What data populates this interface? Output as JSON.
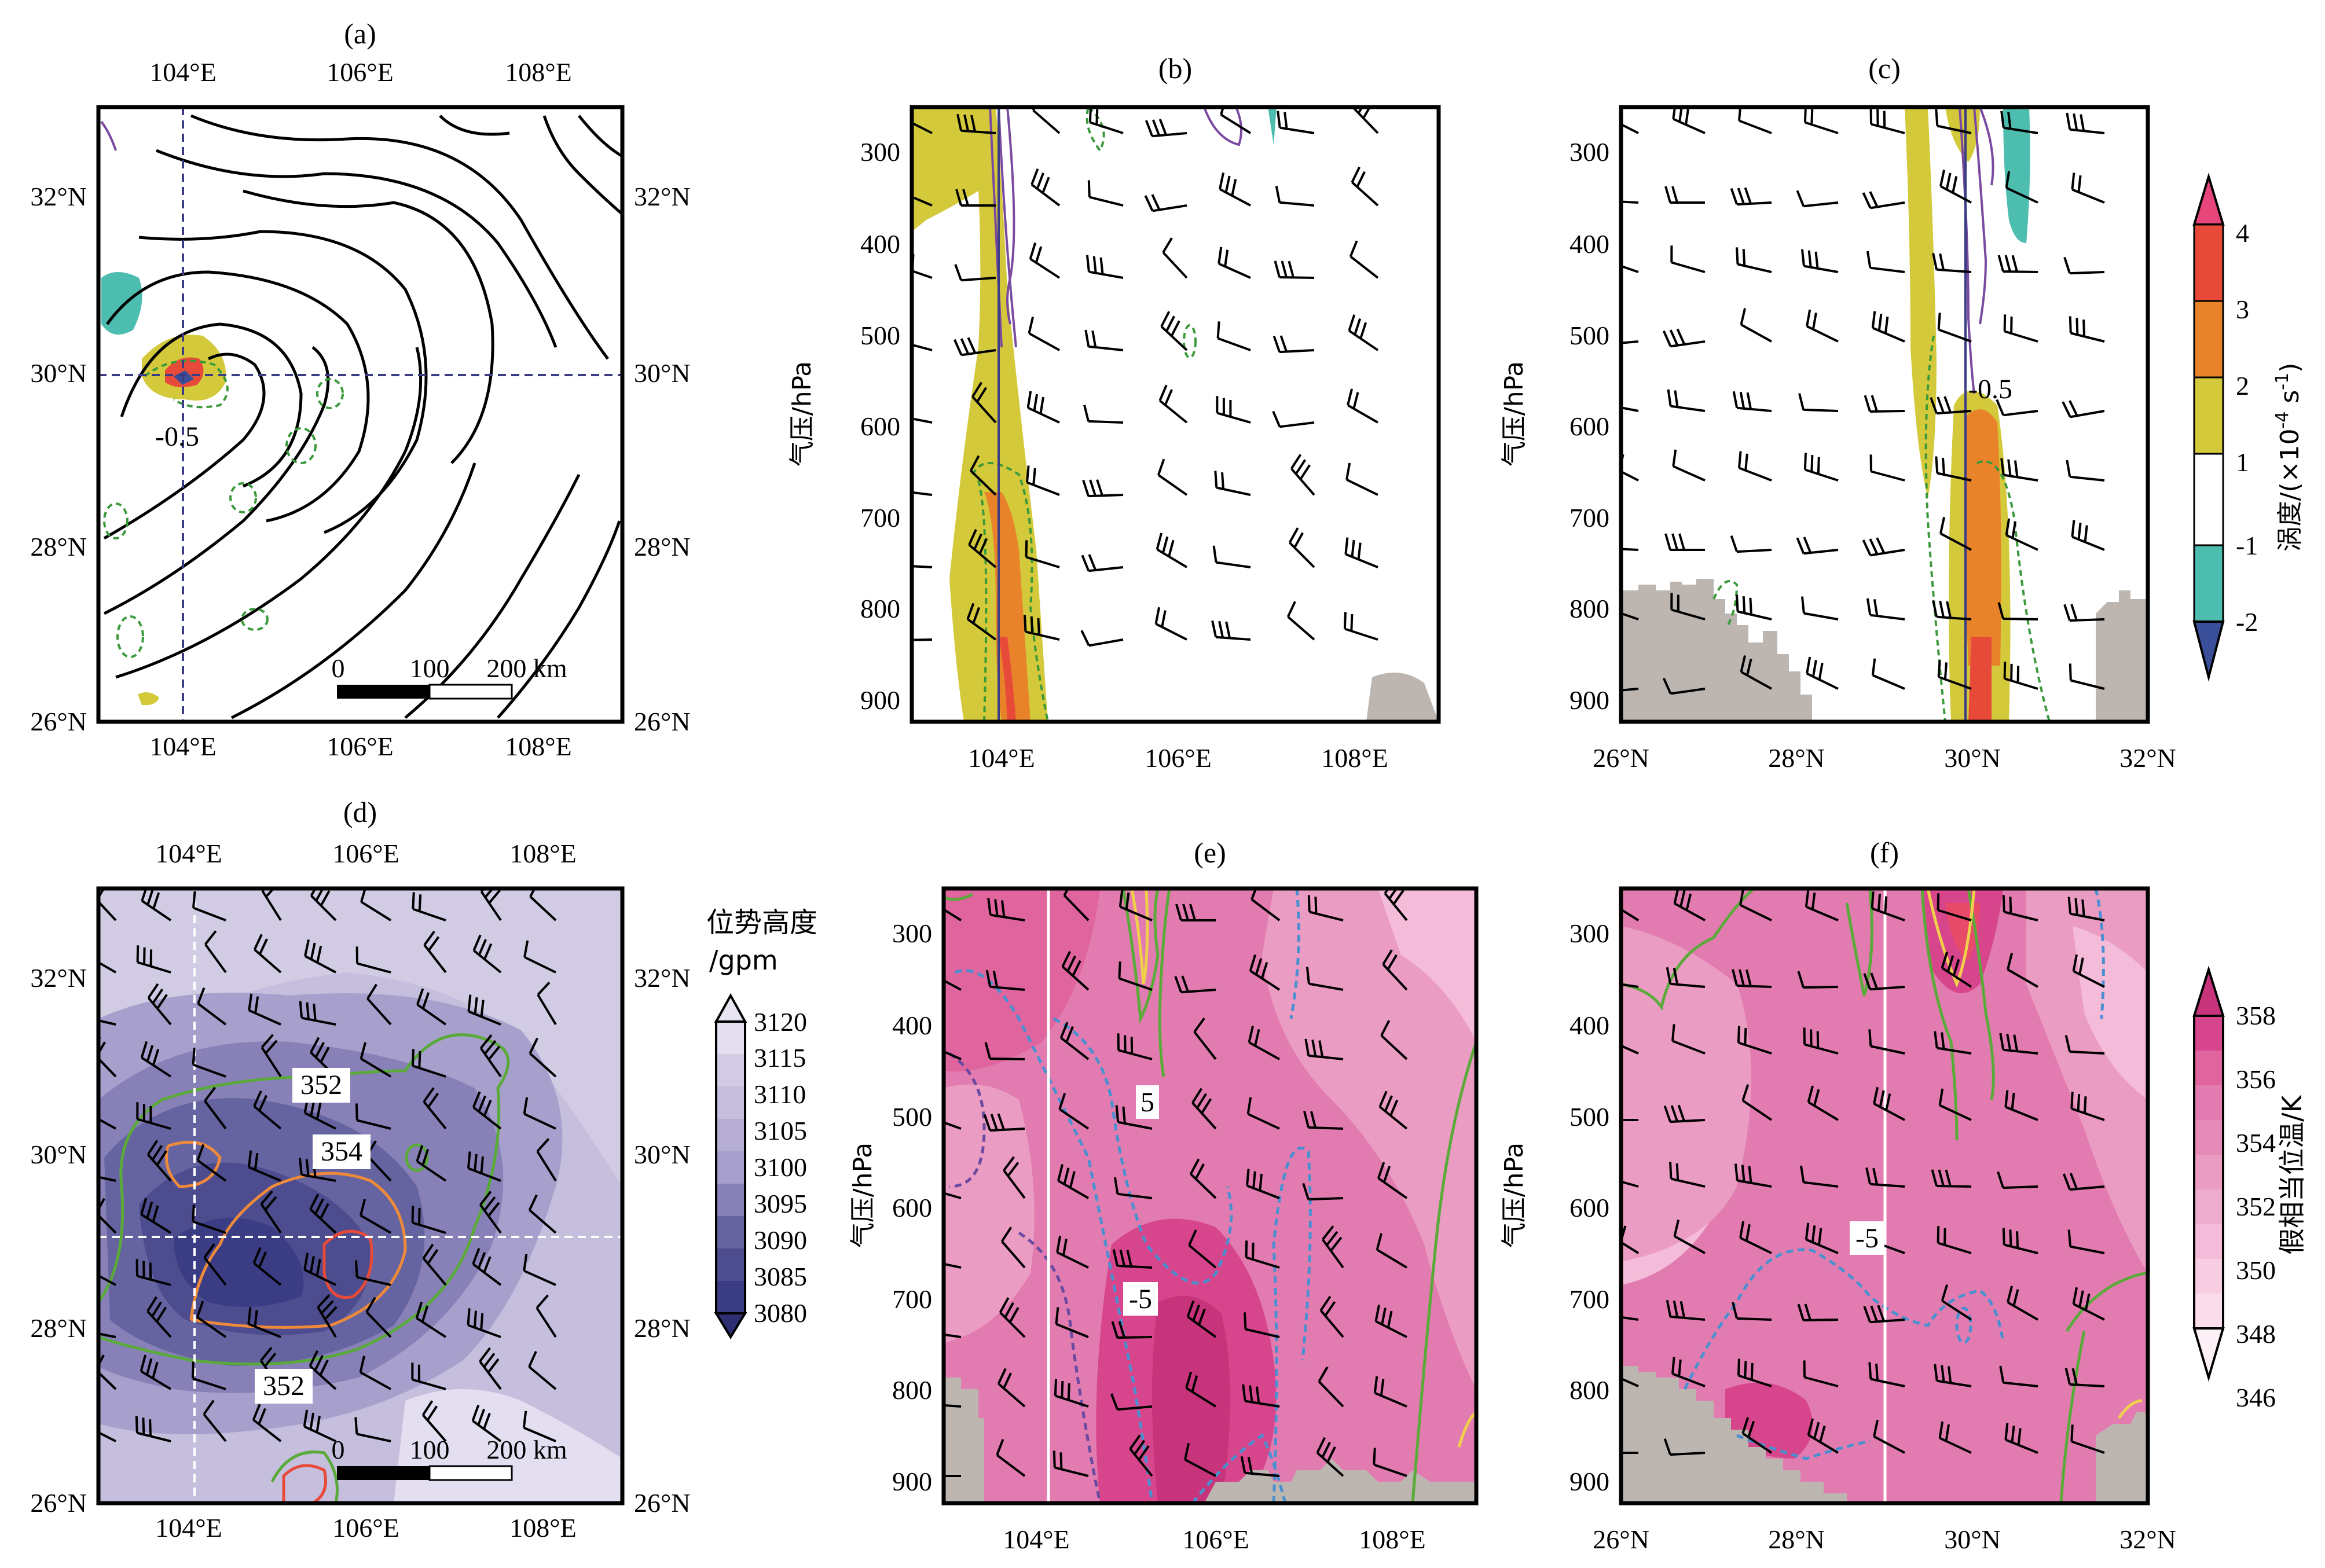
{
  "figure": {
    "panel_labels": [
      "(a)",
      "(b)",
      "(c)",
      "(d)",
      "(e)",
      "(f)"
    ],
    "colors": {
      "vort_pos_1_2": "#d4c93a",
      "vort_pos_2_3": "#e8832a",
      "vort_pos_3_4": "#e84a3a",
      "vort_pos_4": "#e8457a",
      "vort_neg_1_2": "#4dbdb0",
      "vort_neg_2": "#3a4f9a",
      "terrain": "#bcb5b0",
      "streamline": "#000000",
      "contour_neg": "#3a9a3a",
      "contour_purple": "#7a4aa0",
      "geo_dark": "#3b3d84",
      "theta_pink": "#e0649e",
      "green_line": "#5aaa3a",
      "orange_line": "#ee8a3a",
      "red_line": "#e84a3a",
      "yellow_line": "#f0d04a",
      "blue_dash": "#4a90d0",
      "purple_dash": "#6a4aa0"
    }
  },
  "panel_a": {
    "title": "(a)",
    "top_ticks": [
      "104°E",
      "106°E",
      "108°E"
    ],
    "bottom_ticks": [
      "104°E",
      "106°E",
      "108°E"
    ],
    "left_ticks": [
      "32°N",
      "30°N",
      "28°N",
      "26°N"
    ],
    "right_ticks": [
      "32°N",
      "30°N",
      "28°N",
      "26°N"
    ],
    "contour_label": "-0.5",
    "scale_bar": {
      "ticks": [
        "0",
        "100",
        "200 km"
      ]
    }
  },
  "panel_b": {
    "title": "(b)",
    "ylabel": "气压/hPa",
    "y_ticks": [
      "300",
      "400",
      "500",
      "600",
      "700",
      "800",
      "900"
    ],
    "x_ticks": [
      "104°E",
      "106°E",
      "108°E"
    ]
  },
  "panel_c": {
    "title": "(c)",
    "ylabel": "气压/hPa",
    "y_ticks": [
      "300",
      "400",
      "500",
      "600",
      "700",
      "800",
      "900"
    ],
    "x_ticks": [
      "26°N",
      "28°N",
      "30°N",
      "32°N"
    ],
    "contour_label": "-0.5"
  },
  "colorbar_top": {
    "label": "涡度/(×10",
    "label_sup": "-4",
    "label_tail": " s",
    "label_sup2": "-1",
    "label_close": ")",
    "ticks": [
      "4",
      "3",
      "2",
      "1",
      "-1",
      "-2"
    ]
  },
  "panel_d": {
    "title": "(d)",
    "top_ticks": [
      "104°E",
      "106°E",
      "108°E"
    ],
    "bottom_ticks": [
      "104°E",
      "106°E",
      "108°E"
    ],
    "left_ticks": [
      "32°N",
      "30°N",
      "28°N",
      "26°N"
    ],
    "right_ticks": [
      "32°N",
      "30°N",
      "28°N",
      "26°N"
    ],
    "contour_labels": [
      "352",
      "354",
      "352"
    ],
    "scale_bar": {
      "ticks": [
        "0",
        "100",
        "200 km"
      ]
    }
  },
  "colorbar_geo": {
    "label_line1": "位势高度",
    "label_line2": "/gpm",
    "ticks": [
      "3120",
      "3115",
      "3110",
      "3105",
      "3100",
      "3095",
      "3090",
      "3085",
      "3080"
    ]
  },
  "panel_e": {
    "title": "(e)",
    "ylabel": "气压/hPa",
    "y_ticks": [
      "300",
      "400",
      "500",
      "600",
      "700",
      "800",
      "900"
    ],
    "x_ticks": [
      "104°E",
      "106°E",
      "108°E"
    ],
    "contour_labels": [
      "5",
      "-5"
    ]
  },
  "panel_f": {
    "title": "(f)",
    "ylabel": "气压/hPa",
    "y_ticks": [
      "300",
      "400",
      "500",
      "600",
      "700",
      "800",
      "900"
    ],
    "x_ticks": [
      "26°N",
      "28°N",
      "30°N",
      "32°N"
    ],
    "contour_labels": [
      "-5"
    ]
  },
  "colorbar_theta": {
    "label": "假相当位温/K",
    "ticks": [
      "358",
      "356",
      "354",
      "352",
      "350",
      "348",
      "346"
    ]
  },
  "chart_data": [
    {
      "panel": "(a)",
      "type": "map",
      "xlim": [
        103,
        109
      ],
      "ylim": [
        26,
        33
      ],
      "x_ticks": [
        104,
        106,
        108
      ],
      "y_ticks": [
        26,
        28,
        30,
        32
      ],
      "cross_section_lines": {
        "lon": 104,
        "lat": 30
      },
      "vortex_center": [
        104,
        30
      ],
      "contour_label": -0.5
    },
    {
      "panel": "(b)",
      "type": "cross_section",
      "xlim": [
        103,
        109
      ],
      "ylim": [
        925,
        250
      ],
      "x_ticks": [
        104,
        106,
        108
      ],
      "y_ticks": [
        300,
        400,
        500,
        600,
        700,
        800,
        900
      ]
    },
    {
      "panel": "(c)",
      "type": "cross_section",
      "xlim": [
        26,
        32
      ],
      "ylim": [
        925,
        250
      ],
      "x_ticks": [
        26,
        28,
        30,
        32
      ],
      "y_ticks": [
        300,
        400,
        500,
        600,
        700,
        800,
        900
      ],
      "contour_label": -0.5
    },
    {
      "panel": "colorbar-vorticity",
      "type": "colorbar",
      "levels": [
        -2,
        -1,
        1,
        2,
        3,
        4
      ]
    },
    {
      "panel": "(d)",
      "type": "map",
      "xlim": [
        103,
        109
      ],
      "ylim": [
        26,
        33
      ],
      "x_ticks": [
        104,
        106,
        108
      ],
      "y_ticks": [
        26,
        28,
        30,
        32
      ],
      "cross_section_lines": {
        "lon": 104.1,
        "lat": 29
      },
      "contour_labels": [
        352,
        354,
        352
      ]
    },
    {
      "panel": "colorbar-geopotential",
      "type": "colorbar",
      "levels": [
        3080,
        3085,
        3090,
        3095,
        3100,
        3105,
        3110,
        3115,
        3120
      ]
    },
    {
      "panel": "(e)",
      "type": "cross_section",
      "xlim": [
        103,
        109
      ],
      "ylim": [
        925,
        250
      ],
      "x_ticks": [
        104,
        106,
        108
      ],
      "y_ticks": [
        300,
        400,
        500,
        600,
        700,
        800,
        900
      ],
      "section_line_lon": 104.1,
      "contour_labels": [
        5,
        -5
      ]
    },
    {
      "panel": "(f)",
      "type": "cross_section",
      "xlim": [
        26,
        32
      ],
      "ylim": [
        925,
        250
      ],
      "x_ticks": [
        26,
        28,
        30,
        32
      ],
      "y_ticks": [
        300,
        400,
        500,
        600,
        700,
        800,
        900
      ],
      "section_line_lat": 29,
      "contour_labels": [
        -5
      ]
    },
    {
      "panel": "colorbar-theta-se",
      "type": "colorbar",
      "levels": [
        346,
        348,
        350,
        352,
        354,
        356,
        358
      ]
    }
  ]
}
